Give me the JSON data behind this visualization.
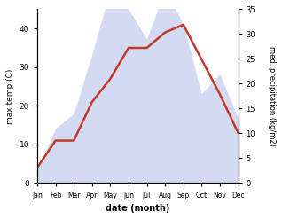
{
  "months": [
    "Jan",
    "Feb",
    "Mar",
    "Apr",
    "May",
    "Jun",
    "Jul",
    "Aug",
    "Sep",
    "Oct",
    "Nov",
    "Dec"
  ],
  "month_indices": [
    1,
    2,
    3,
    4,
    5,
    6,
    7,
    8,
    9,
    10,
    11,
    12
  ],
  "temperature": [
    4,
    11,
    11,
    21,
    27,
    35,
    35,
    39,
    41,
    32,
    23,
    13
  ],
  "precipitation": [
    3,
    11,
    14,
    26,
    39,
    35,
    29,
    39,
    32,
    18,
    22,
    13
  ],
  "temp_color": "#c0392b",
  "precip_color_fill": "#b0bce8",
  "temp_ylim": [
    0,
    45
  ],
  "temp_yticks": [
    0,
    10,
    20,
    30,
    40
  ],
  "precip_ylim": [
    0,
    35
  ],
  "precip_yticks": [
    0,
    5,
    10,
    15,
    20,
    25,
    30,
    35
  ],
  "xlabel": "date (month)",
  "ylabel_left": "max temp (C)",
  "ylabel_right": "med. precipitation (kg/m2)",
  "background_color": "#ffffff",
  "line_width": 1.8,
  "alpha_fill": 0.55,
  "figsize": [
    3.18,
    2.47
  ],
  "dpi": 100
}
